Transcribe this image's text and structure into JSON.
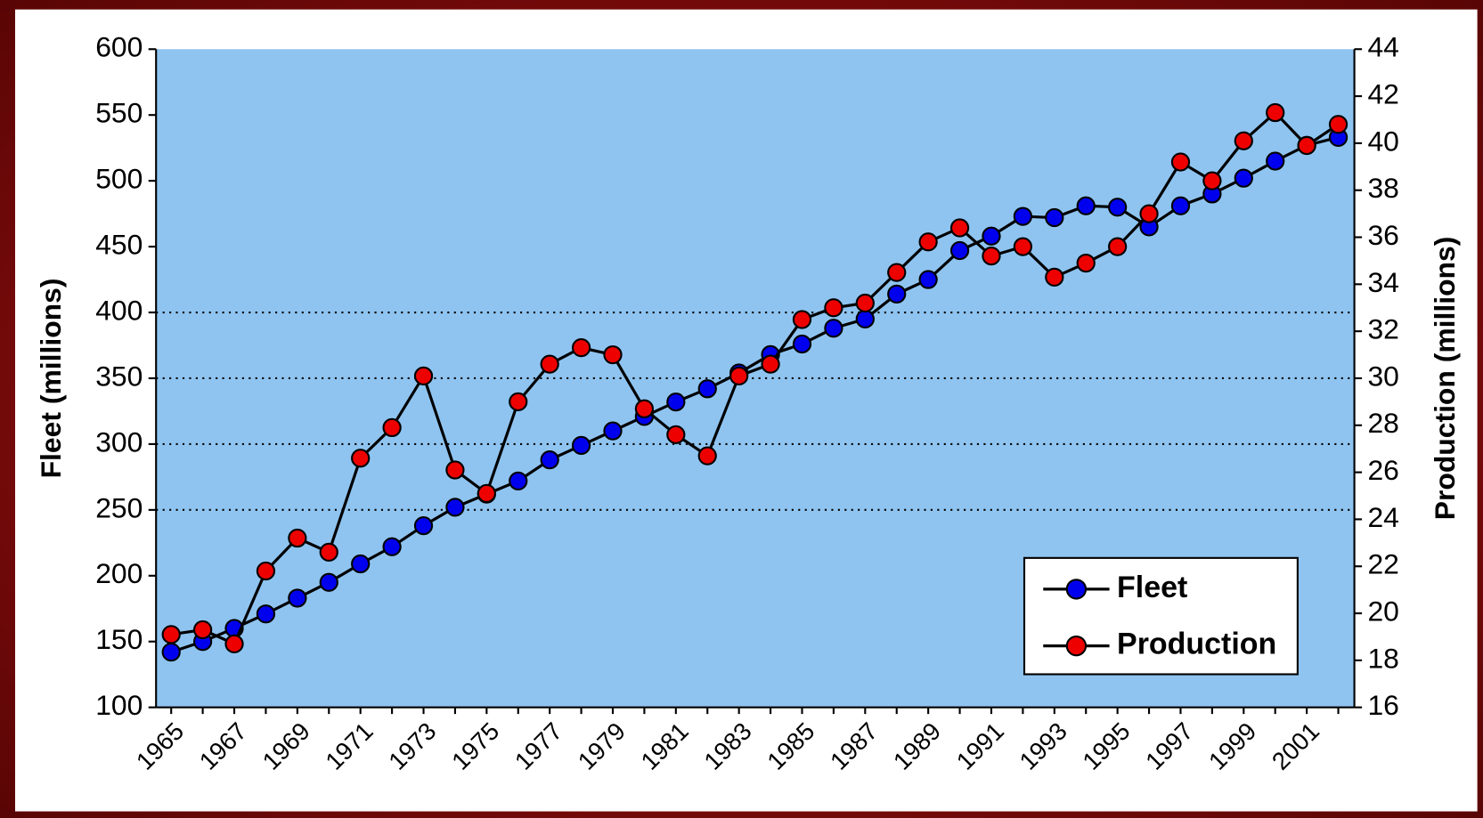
{
  "chart_data": {
    "type": "line",
    "categories": [
      "1965",
      null,
      "1967",
      null,
      "1969",
      null,
      "1971",
      null,
      "1973",
      null,
      "1975",
      null,
      "1977",
      null,
      "1979",
      null,
      "1981",
      null,
      "1983",
      null,
      "1985",
      null,
      "1987",
      null,
      "1989",
      null,
      "1991",
      null,
      "1993",
      null,
      "1995",
      null,
      "1997",
      null,
      "1999",
      null,
      "2001",
      null
    ],
    "y_label": "Fleet (millions)",
    "y2_label": "Production (millions)",
    "ylim": [
      100,
      600
    ],
    "yticks": [
      100,
      150,
      200,
      250,
      300,
      350,
      400,
      450,
      500,
      550,
      600
    ],
    "y2lim": [
      16,
      44
    ],
    "y2ticks": [
      16,
      18,
      20,
      22,
      24,
      26,
      28,
      30,
      32,
      34,
      36,
      38,
      40,
      42,
      44
    ],
    "gridlines": [
      250,
      300,
      350,
      400
    ],
    "legend": "lower-right",
    "series": [
      {
        "name": "Fleet",
        "color": "#0000ee",
        "values": [
          142,
          150,
          160,
          171,
          183,
          195,
          209,
          222,
          238,
          252,
          262,
          272,
          288,
          299,
          310,
          321,
          332,
          342,
          354,
          368,
          376,
          388,
          395,
          414,
          425,
          447,
          458,
          473,
          472,
          481,
          480,
          465,
          481,
          490,
          502,
          515,
          527,
          533
        ]
      },
      {
        "name": "Production",
        "color": "#ee0000",
        "axis": "y2",
        "values": [
          19.1,
          19.3,
          18.7,
          21.8,
          23.2,
          22.6,
          26.6,
          27.9,
          30.1,
          26.1,
          25.1,
          29.0,
          30.6,
          31.3,
          31.0,
          28.7,
          27.6,
          26.7,
          30.1,
          30.6,
          32.5,
          33.0,
          33.2,
          34.5,
          35.8,
          36.4,
          35.2,
          35.6,
          34.3,
          34.9,
          35.6,
          37.0,
          39.2,
          38.4,
          40.1,
          41.3,
          39.9,
          40.8
        ]
      }
    ]
  }
}
